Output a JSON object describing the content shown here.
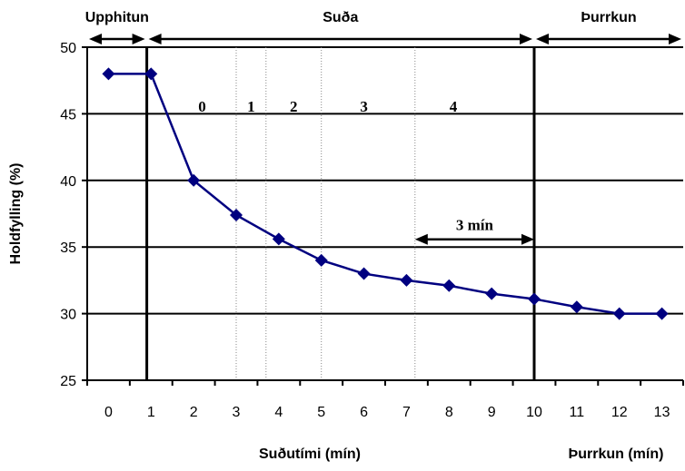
{
  "chart_data": {
    "type": "line",
    "x": [
      0,
      1,
      2,
      3,
      4,
      5,
      6,
      7,
      8,
      9,
      10,
      11,
      12,
      13
    ],
    "values": [
      48,
      48,
      40,
      37.4,
      35.6,
      34,
      33,
      32.5,
      32.1,
      31.5,
      31.1,
      30.5,
      30,
      30
    ],
    "x_tick_labels": [
      "0",
      "1",
      "2",
      "3",
      "4",
      "5",
      "6",
      "7",
      "8",
      "9",
      "10",
      "11",
      "12",
      "13"
    ],
    "ylim": [
      25,
      50
    ],
    "y_ticks": [
      25,
      30,
      35,
      40,
      45,
      50
    ],
    "ylabel": "Holdfylling (%)",
    "xlabel": "Suðutími (mín)",
    "xlabel2": "Þurrkun (mín)",
    "grid": "horizontal",
    "phases": [
      {
        "label": "Upphitun",
        "from": -0.5,
        "to": 0.9
      },
      {
        "label": "Suða",
        "from": 0.9,
        "to": 10.0
      },
      {
        "label": "Þurrkun",
        "from": 10.0,
        "to": 13.5
      }
    ],
    "stages": [
      {
        "label": "0",
        "x": 2.2
      },
      {
        "label": "1",
        "x": 3.35
      },
      {
        "label": "2",
        "x": 4.35
      },
      {
        "label": "3",
        "x": 6.0
      },
      {
        "label": "4",
        "x": 8.1
      }
    ],
    "stage_boundaries": [
      3.0,
      3.7,
      5.0,
      7.2
    ],
    "annotation": {
      "label": "3 mín",
      "from": 7.2,
      "to": 10.0,
      "y": 36.6
    },
    "colors": {
      "series": "#000080",
      "grid": "#000000"
    }
  }
}
